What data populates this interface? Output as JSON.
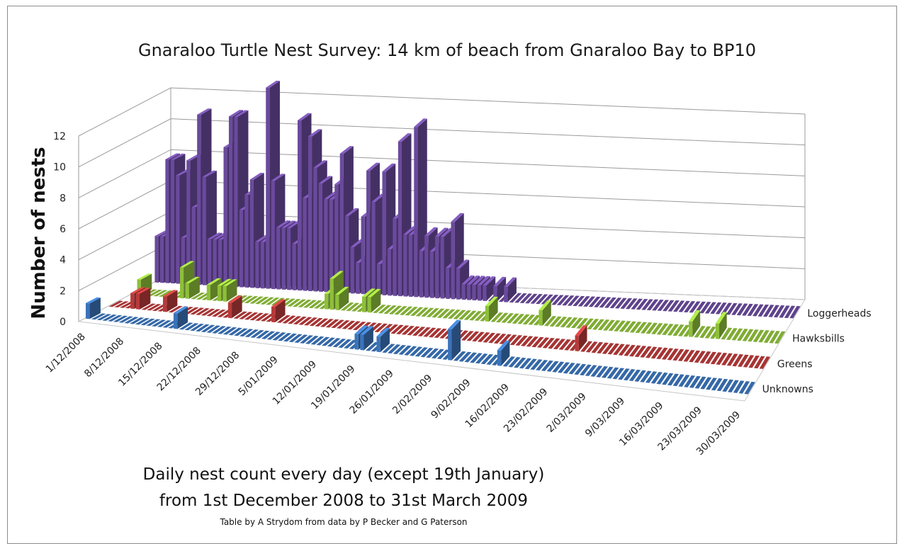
{
  "chart_data": {
    "type": "bar",
    "title": "Gnaraloo Turtle Nest Survey:  14 km of beach from Gnaraloo Bay to BP10",
    "ylabel": "Number of nests",
    "xlabel": "",
    "ylim": [
      0,
      12
    ],
    "y_ticks": [
      "0",
      "2",
      "4",
      "6",
      "8",
      "10",
      "12"
    ],
    "x_tick_labels": [
      "1/12/2008",
      "8/12/2008",
      "15/12/2008",
      "22/12/2008",
      "29/12/2008",
      "5/01/2009",
      "12/01/2009",
      "19/01/2009",
      "26/01/2009",
      "2/02/2009",
      "9/02/2009",
      "16/02/2009",
      "23/02/2009",
      "2/03/2009",
      "9/03/2009",
      "16/03/2009",
      "23/03/2009",
      "30/03/2009"
    ],
    "series": [
      {
        "name": "Loggerheads",
        "color": "#6a4a9c",
        "values": [
          3,
          3,
          8,
          8,
          7,
          3,
          8,
          5,
          11,
          7,
          3,
          3,
          3,
          9,
          11,
          11,
          5,
          6,
          7,
          3,
          3,
          13,
          7,
          4,
          4,
          4,
          3,
          11,
          6,
          10,
          8,
          7,
          6,
          6,
          7,
          9,
          5,
          3,
          2,
          5,
          8,
          6,
          2,
          8,
          3,
          5,
          10,
          4,
          4,
          11,
          3,
          4,
          3,
          4,
          4,
          2,
          5,
          2,
          1,
          1,
          1,
          1,
          1,
          0,
          1,
          0,
          1,
          0,
          0,
          0,
          0,
          0,
          0,
          0,
          0,
          0,
          0,
          0,
          0,
          0,
          0,
          0,
          0,
          0,
          0,
          0,
          0,
          0,
          0,
          0,
          0,
          0,
          0,
          0,
          0,
          0,
          0,
          0,
          0,
          0,
          0,
          0,
          0,
          0,
          0,
          0,
          0,
          0,
          0,
          0,
          0,
          0,
          0,
          0,
          0,
          0,
          0,
          0,
          0,
          0,
          0
        ]
      },
      {
        "name": "Hawksbills",
        "color": "#8ebf3a",
        "values": [
          0,
          1,
          0,
          0,
          0,
          0,
          0,
          0,
          0,
          2,
          1,
          0,
          0,
          0,
          1,
          0,
          1,
          1,
          0,
          0,
          0,
          0,
          0,
          0,
          0,
          0,
          0,
          0,
          0,
          0,
          0,
          0,
          0,
          0,
          0,
          0,
          1,
          2,
          1,
          0,
          0,
          0,
          0,
          1,
          1,
          0,
          0,
          0,
          0,
          0,
          0,
          0,
          0,
          0,
          0,
          0,
          0,
          0,
          0,
          0,
          0,
          0,
          0,
          0,
          0,
          0,
          1,
          0,
          0,
          0,
          0,
          0,
          0,
          0,
          0,
          0,
          1,
          0,
          0,
          0,
          0,
          0,
          0,
          0,
          0,
          0,
          0,
          0,
          0,
          0,
          0,
          0,
          0,
          0,
          0,
          0,
          0,
          0,
          0,
          0,
          0,
          0,
          0,
          0,
          1,
          0,
          0,
          0,
          0,
          1,
          0,
          0,
          0,
          0,
          0,
          0,
          0,
          0,
          0,
          0,
          0
        ]
      },
      {
        "name": "Greens",
        "color": "#b83a3a",
        "values": [
          0,
          0,
          0,
          0,
          1,
          1,
          0,
          0,
          0,
          0,
          1,
          0,
          0,
          0,
          0,
          0,
          0,
          0,
          0,
          0,
          0,
          0,
          1,
          0,
          0,
          0,
          0,
          0,
          0,
          0,
          1,
          0,
          0,
          0,
          0,
          0,
          0,
          0,
          0,
          0,
          0,
          0,
          0,
          0,
          0,
          0,
          0,
          0,
          0,
          0,
          0,
          0,
          0,
          0,
          0,
          0,
          0,
          0,
          0,
          0,
          0,
          0,
          0,
          0,
          0,
          0,
          0,
          0,
          0,
          0,
          0,
          0,
          0,
          0,
          0,
          0,
          0,
          0,
          0,
          0,
          0,
          0,
          0,
          0,
          0,
          0,
          1,
          0,
          0,
          0,
          0,
          0,
          0,
          0,
          0,
          0,
          0,
          0,
          0,
          0,
          0,
          0,
          0,
          0,
          0,
          0,
          0,
          0,
          0,
          0,
          0,
          0,
          0,
          0,
          0,
          0,
          0,
          0,
          0,
          0,
          0
        ]
      },
      {
        "name": "Unknowns",
        "color": "#3b73b9",
        "values": [
          1,
          0,
          0,
          0,
          0,
          0,
          0,
          0,
          0,
          0,
          0,
          0,
          0,
          0,
          0,
          0,
          1,
          0,
          0,
          0,
          0,
          0,
          0,
          0,
          0,
          0,
          0,
          0,
          0,
          0,
          0,
          0,
          0,
          0,
          0,
          0,
          0,
          0,
          0,
          0,
          0,
          0,
          0,
          0,
          0,
          0,
          0,
          0,
          0,
          1,
          1,
          0,
          0,
          1,
          0,
          0,
          0,
          0,
          0,
          0,
          0,
          0,
          0,
          0,
          0,
          0,
          2,
          0,
          0,
          0,
          0,
          0,
          0,
          0,
          0,
          1,
          0,
          0,
          0,
          0,
          0,
          0,
          0,
          0,
          0,
          0,
          0,
          0,
          0,
          0,
          0,
          0,
          0,
          0,
          0,
          0,
          0,
          0,
          0,
          0,
          0,
          0,
          0,
          0,
          0,
          0,
          0,
          0,
          0,
          0,
          0,
          0,
          0,
          0,
          0,
          0,
          0,
          0,
          0,
          0,
          0
        ]
      }
    ],
    "grid": true,
    "legend_position": "right"
  },
  "notes": {
    "line1": "Daily nest count every day (except 19th January)",
    "line2": "from 1st December 2008 to 31st March 2009",
    "credit": "Table by A Strydom from data by  P Becker and  G Paterson"
  }
}
